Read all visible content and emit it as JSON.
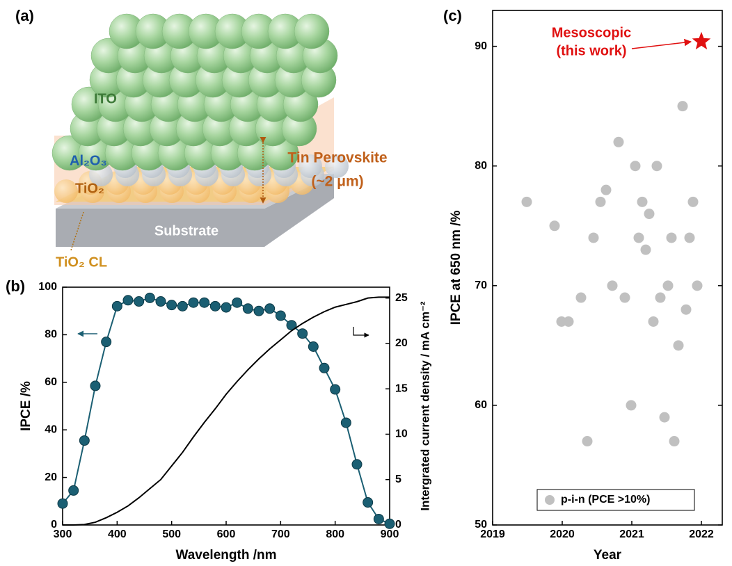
{
  "panel_labels": [
    "(a)",
    "(b)",
    "(c)"
  ],
  "illustration": {
    "labels": {
      "ito": "ITO",
      "al2o3": "Al₂O₃",
      "tio2": "TiO₂",
      "perovskite": "Tin Perovskite",
      "thickness": "(~2 μm)",
      "substrate": "Substrate",
      "tio2_cl": "TiO₂ CL"
    }
  },
  "chart_data": [
    {
      "type": "line",
      "xlabel": "Wavelength /nm",
      "ylabel": "IPCE /%",
      "y2label": "Intergrated current density / mA cm⁻²",
      "x": [
        300,
        320,
        340,
        360,
        380,
        400,
        420,
        440,
        460,
        480,
        500,
        520,
        540,
        560,
        580,
        600,
        620,
        640,
        660,
        680,
        700,
        720,
        740,
        760,
        780,
        800,
        820,
        840,
        860,
        880,
        900
      ],
      "xlim": [
        300,
        900
      ],
      "xticks": [
        300,
        400,
        500,
        600,
        700,
        800,
        900
      ],
      "ylim": [
        0,
        100
      ],
      "yticks": [
        0,
        20,
        40,
        60,
        80,
        100
      ],
      "y2lim": [
        0,
        26.2
      ],
      "y2ticks": [
        0,
        5,
        10,
        15,
        20,
        25
      ],
      "series": [
        {
          "color": "#1b5f73",
          "markers": true,
          "values": [
            9,
            14.5,
            35.5,
            58.5,
            77,
            92,
            94.5,
            94,
            95.5,
            94,
            92.5,
            92,
            93.5,
            93.5,
            92,
            91.5,
            93.5,
            91,
            90,
            91,
            88,
            84,
            80.5,
            75,
            66,
            57,
            43,
            25.5,
            9.5,
            2.5,
            0.5
          ]
        },
        {
          "color": "#000000",
          "axis": "y2",
          "markers": false,
          "values": [
            0,
            0,
            0.05,
            0.3,
            0.8,
            1.4,
            2.1,
            3,
            4,
            5,
            6.5,
            8,
            9.7,
            11.3,
            12.8,
            14.4,
            15.8,
            17.1,
            18.3,
            19.4,
            20.4,
            21.4,
            22.2,
            22.9,
            23.5,
            24,
            24.3,
            24.6,
            25,
            25.1,
            25.1
          ]
        }
      ]
    },
    {
      "type": "scatter",
      "xlabel": "Year",
      "ylabel": "IPCE at 650 nm /%",
      "xlim": [
        2019,
        2022.3
      ],
      "xticks": [
        2019,
        2020,
        2021,
        2022
      ],
      "ylim": [
        50,
        93
      ],
      "yticks": [
        50,
        60,
        70,
        80,
        90
      ],
      "annotation": [
        "Mesoscopic",
        "(this work)"
      ],
      "series": [
        {
          "name": "p-i-n (PCE >10%)",
          "color": "#c0c0c0",
          "marker": "circle",
          "x": [
            2019.49,
            2019.89,
            2019.99,
            2020.09,
            2020.27,
            2020.36,
            2020.45,
            2020.55,
            2020.63,
            2020.72,
            2020.81,
            2020.9,
            2020.99,
            2021.05,
            2021.1,
            2021.15,
            2021.2,
            2021.25,
            2021.31,
            2021.36,
            2021.41,
            2021.47,
            2021.52,
            2021.57,
            2021.61,
            2021.67,
            2021.73,
            2021.78,
            2021.83,
            2021.88,
            2021.94
          ],
          "values": [
            77,
            75,
            67,
            67,
            69,
            57,
            74,
            77,
            78,
            70,
            82,
            69,
            60,
            80,
            74,
            77,
            73,
            76,
            67,
            80,
            69,
            59,
            70,
            74,
            57,
            65,
            85,
            68,
            74,
            77,
            70
          ]
        },
        {
          "color": "#e01010",
          "marker": "star",
          "x": [
            2022
          ],
          "values": [
            90.4
          ]
        }
      ]
    }
  ]
}
